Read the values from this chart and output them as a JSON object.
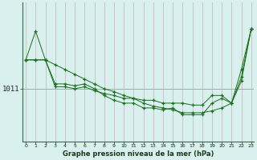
{
  "xlabel": "Graphe pression niveau de la mer (hPa)",
  "background_color": "#d8f0ee",
  "line_color": "#1a6e1a",
  "x": [
    0,
    1,
    2,
    3,
    4,
    5,
    6,
    7,
    8,
    9,
    10,
    11,
    12,
    13,
    14,
    15,
    16,
    17,
    18,
    19,
    20,
    21,
    22,
    23
  ],
  "series1": [
    1014.0,
    1017.0,
    1014.0,
    1011.2,
    1011.2,
    1011.0,
    1011.2,
    1010.8,
    1010.5,
    1010.3,
    1010.0,
    1010.0,
    1009.8,
    1009.8,
    1009.5,
    1009.5,
    1009.5,
    1009.3,
    1009.3,
    1010.3,
    1010.3,
    1009.5,
    1011.8,
    1017.2
  ],
  "series2": [
    1014.0,
    1014.0,
    1014.0,
    1013.5,
    1013.0,
    1012.5,
    1012.0,
    1011.5,
    1011.0,
    1010.7,
    1010.3,
    1010.0,
    1009.5,
    1009.2,
    1009.0,
    1008.8,
    1008.5,
    1008.5,
    1008.5,
    1008.7,
    1009.0,
    1009.5,
    1013.0,
    1017.2
  ],
  "series3": [
    1014.0,
    1014.0,
    1014.0,
    1011.5,
    1011.5,
    1011.3,
    1011.5,
    1011.0,
    1010.3,
    1009.8,
    1009.5,
    1009.5,
    1009.0,
    1009.0,
    1008.8,
    1009.0,
    1008.3,
    1008.3,
    1008.3,
    1009.5,
    1010.0,
    1009.5,
    1012.2,
    1017.2
  ],
  "ytick_value": 1011,
  "ytick_label": "1011",
  "ylim": [
    1005.5,
    1020.0
  ],
  "xlim": [
    -0.3,
    23.3
  ]
}
